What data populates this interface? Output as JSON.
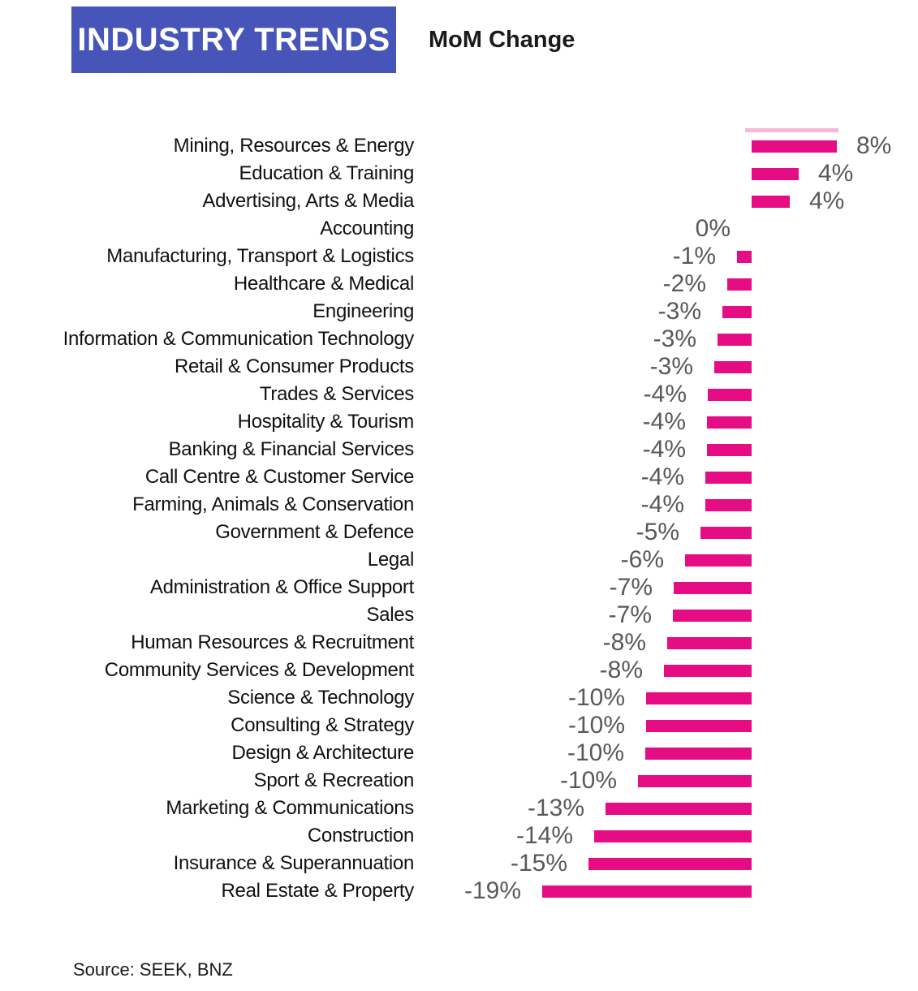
{
  "chart_data": {
    "type": "bar",
    "orientation": "horizontal",
    "title": "INDUSTRY TRENDS",
    "subtitle": "MoM Change",
    "source": "Source: SEEK, BNZ",
    "unit": "%",
    "grid": false,
    "xlim": [
      -20,
      10
    ],
    "value_label_position": "outside bar ends",
    "categories": [
      "Mining, Resources & Energy",
      "Education & Training",
      "Advertising, Arts & Media",
      "Accounting",
      "Manufacturing, Transport & Logistics",
      "Healthcare & Medical",
      "Engineering",
      "Information & Communication Technology",
      "Retail & Consumer Products",
      "Trades & Services",
      "Hospitality & Tourism",
      "Banking & Financial Services",
      "Call Centre & Customer Service",
      "Farming, Animals & Conservation",
      "Government & Defence",
      "Legal",
      "Administration & Office Support",
      "Sales",
      "Human Resources & Recruitment",
      "Community Services & Development",
      "Science & Technology",
      "Consulting & Strategy",
      "Design & Architecture",
      "Sport & Recreation",
      "Marketing & Communications",
      "Construction",
      "Insurance & Superannuation",
      "Real Estate & Property"
    ],
    "labels": [
      "8%",
      "4%",
      "4%",
      "0%",
      "-1%",
      "-2%",
      "-3%",
      "-3%",
      "-3%",
      "-4%",
      "-4%",
      "-4%",
      "-4%",
      "-4%",
      "-5%",
      "-6%",
      "-7%",
      "-7%",
      "-8%",
      "-8%",
      "-10%",
      "-10%",
      "-10%",
      "-10%",
      "-13%",
      "-14%",
      "-15%",
      "-19%"
    ],
    "values": [
      8,
      4,
      4,
      0,
      -1,
      -2,
      -3,
      -3,
      -3,
      -4,
      -4,
      -4,
      -4,
      -4,
      -5,
      -6,
      -7,
      -7,
      -8,
      -8,
      -10,
      -10,
      -10,
      -10,
      -13,
      -14,
      -15,
      -19
    ],
    "bar_lengths_pct": [
      7.8,
      4.3,
      3.5,
      0,
      -1.3,
      -2.2,
      -2.7,
      -3.1,
      -3.4,
      -4.0,
      -4.1,
      -4.1,
      -4.2,
      -4.2,
      -4.7,
      -6.1,
      -7.1,
      -7.2,
      -7.7,
      -8.0,
      -9.6,
      -9.6,
      -9.7,
      -10.4,
      -13.3,
      -14.4,
      -14.9,
      -19.1
    ],
    "colors": {
      "bar": "#E60D84",
      "title_bg": "#4754B8",
      "title_text": "#FFFFFF",
      "subtitle_text": "#1A1A1A",
      "value_text": "#58595B",
      "category_text": "#111111",
      "background": "#FFFFFF"
    }
  }
}
